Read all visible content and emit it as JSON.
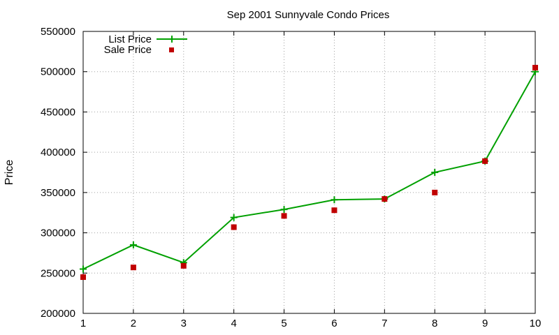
{
  "chart_data": {
    "type": "line",
    "title": "Sep 2001 Sunnyvale Condo Prices",
    "xlabel": "",
    "ylabel": "Price",
    "xlim": [
      1,
      10
    ],
    "ylim": [
      200000,
      550000
    ],
    "x_ticks": [
      "1",
      "2",
      "3",
      "4",
      "5",
      "6",
      "7",
      "8",
      "9",
      "10"
    ],
    "y_ticks": [
      "200000",
      "250000",
      "300000",
      "350000",
      "400000",
      "450000",
      "500000",
      "550000"
    ],
    "grid": true,
    "legend_position": "top-left",
    "x": [
      1,
      2,
      3,
      4,
      5,
      6,
      7,
      8,
      9,
      10
    ],
    "series": [
      {
        "name": "List Price",
        "style": "line-with-plus-markers",
        "color": "#00a000",
        "values": [
          255000,
          285000,
          263000,
          319000,
          329000,
          341000,
          342000,
          375000,
          389000,
          500000
        ]
      },
      {
        "name": "Sale Price",
        "style": "square-markers",
        "color": "#c00000",
        "values": [
          245000,
          257000,
          259000,
          307000,
          321000,
          328000,
          342000,
          350000,
          389000,
          505000
        ]
      }
    ]
  }
}
